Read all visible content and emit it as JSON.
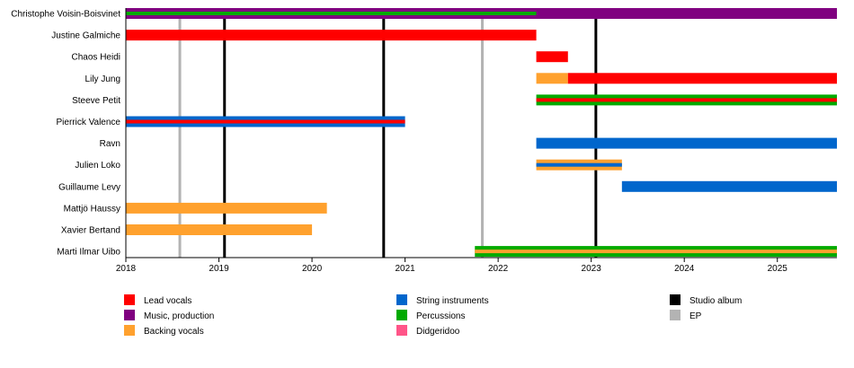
{
  "chart_data": {
    "type": "timeline",
    "xlim": [
      2018,
      2025.64
    ],
    "x_ticks": [
      "2018",
      "2019",
      "2020",
      "2021",
      "2022",
      "2023",
      "2024",
      "2025"
    ],
    "colors": {
      "Lead vocals": "#FF0000",
      "Music, production": "#800080",
      "Backing vocals": "#FFA12E",
      "String instruments": "#0066CC",
      "Percussions": "#00AA00",
      "Didgeridoo": "#FF5588",
      "Studio album": "#000000",
      "EP": "#B3B3B3"
    },
    "members": [
      {
        "name": "Christophe Voisin-Boisvinet",
        "bars": [
          {
            "role": "Music, production",
            "start": 2018,
            "end": 2025.64
          }
        ],
        "stripes": [
          {
            "role": "Percussions",
            "start": 2018,
            "end": 2022.41
          }
        ]
      },
      {
        "name": "Justine Galmiche",
        "bars": [
          {
            "role": "Lead vocals",
            "start": 2018,
            "end": 2022.41
          }
        ],
        "stripes": []
      },
      {
        "name": "Chaos Heidi",
        "bars": [
          {
            "role": "Lead vocals",
            "start": 2022.41,
            "end": 2022.75
          }
        ],
        "stripes": []
      },
      {
        "name": "Lily Jung",
        "bars": [
          {
            "role": "Backing vocals",
            "start": 2022.41,
            "end": 2022.75
          },
          {
            "role": "Lead vocals",
            "start": 2022.75,
            "end": 2025.64
          }
        ],
        "stripes": []
      },
      {
        "name": "Steeve Petit",
        "bars": [
          {
            "role": "Percussions",
            "start": 2022.41,
            "end": 2025.64
          }
        ],
        "stripes": [
          {
            "role": "Lead vocals",
            "start": 2022.41,
            "end": 2025.64
          }
        ]
      },
      {
        "name": "Pierrick Valence",
        "bars": [
          {
            "role": "String instruments",
            "start": 2018,
            "end": 2021.0
          }
        ],
        "stripes": [
          {
            "role": "Lead vocals",
            "start": 2018,
            "end": 2021.0
          }
        ]
      },
      {
        "name": "Ravn",
        "bars": [
          {
            "role": "String instruments",
            "start": 2022.41,
            "end": 2025.64
          }
        ],
        "stripes": []
      },
      {
        "name": "Julien Loko",
        "bars": [
          {
            "role": "Backing vocals",
            "start": 2022.41,
            "end": 2023.33
          }
        ],
        "stripes": [
          {
            "role": "String instruments",
            "start": 2022.41,
            "end": 2023.33
          }
        ]
      },
      {
        "name": "Guillaume Levy",
        "bars": [
          {
            "role": "String instruments",
            "start": 2023.33,
            "end": 2025.64
          }
        ],
        "stripes": []
      },
      {
        "name": "Mattjö Haussy",
        "bars": [
          {
            "role": "Backing vocals",
            "start": 2018,
            "end": 2020.16
          }
        ],
        "stripes": []
      },
      {
        "name": "Xavier Bertand",
        "bars": [
          {
            "role": "Backing vocals",
            "start": 2018,
            "end": 2020.0
          }
        ],
        "stripes": []
      },
      {
        "name": "Marti Ilmar Uibo",
        "bars": [
          {
            "role": "Percussions",
            "start": 2021.75,
            "end": 2025.64
          }
        ],
        "stripes": [
          {
            "role": "Backing vocals",
            "start": 2021.75,
            "end": 2025.64
          }
        ]
      }
    ],
    "releases": [
      {
        "type": "EP",
        "date": 2018.58
      },
      {
        "type": "Studio album",
        "date": 2019.06
      },
      {
        "type": "Studio album",
        "date": 2020.77
      },
      {
        "type": "EP",
        "date": 2021.83
      },
      {
        "type": "Studio album",
        "date": 2023.05
      }
    ],
    "legend": {
      "placement": "bottom",
      "columns": [
        [
          "Lead vocals",
          "Music, production",
          "Backing vocals"
        ],
        [
          "String instruments",
          "Percussions",
          "Didgeridoo"
        ],
        [
          "Studio album",
          "EP"
        ]
      ]
    }
  }
}
